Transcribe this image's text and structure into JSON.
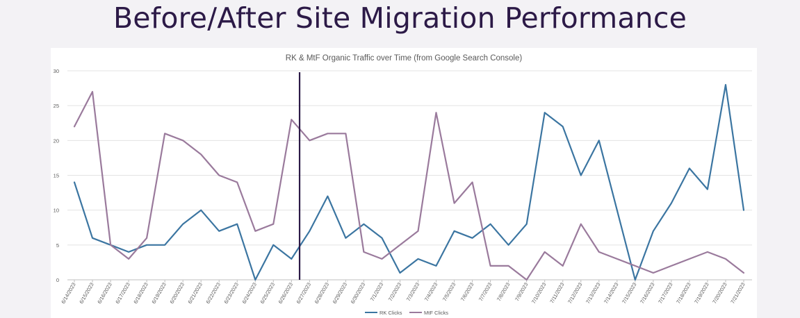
{
  "header": {
    "title": "Before/After Site Migration Performance"
  },
  "colors": {
    "rk": "#3b75a1",
    "mtf": "#9a7a9c",
    "marker": "#2c1a47",
    "title": "#2c1a47"
  },
  "chart_data": {
    "type": "line",
    "title": "RK & MtF Organic Traffic over Time (from Google Search Console)",
    "xlabel": "",
    "ylabel": "",
    "ylim": [
      0,
      30
    ],
    "yticks": [
      0,
      5,
      10,
      15,
      20,
      25,
      30
    ],
    "grid": true,
    "legend_position": "bottom",
    "x": [
      "6/14/2023",
      "6/15/2023",
      "6/16/2023",
      "6/17/2023",
      "6/18/2023",
      "6/19/2023",
      "6/20/2023",
      "6/21/2023",
      "6/22/2023",
      "6/23/2023",
      "6/24/2023",
      "6/25/2023",
      "6/26/2023",
      "6/27/2023",
      "6/28/2023",
      "6/29/2023",
      "6/30/2023",
      "7/1/2023",
      "7/2/2023",
      "7/3/2023",
      "7/4/2023",
      "7/5/2023",
      "7/6/2023",
      "7/7/2023",
      "7/8/2023",
      "7/9/2023",
      "7/10/2023",
      "7/11/2023",
      "7/12/2023",
      "7/13/2023",
      "7/14/2023",
      "7/15/2023",
      "7/16/2023",
      "7/17/2023",
      "7/18/2023",
      "7/19/2023",
      "7/20/2023",
      "7/21/2023"
    ],
    "series": [
      {
        "name": "RK Clicks",
        "color": "#3b75a1",
        "values": [
          14,
          6,
          5,
          4,
          5,
          5,
          8,
          10,
          7,
          8,
          0,
          5,
          3,
          7,
          12,
          6,
          8,
          6,
          1,
          3,
          2,
          7,
          6,
          8,
          5,
          8,
          24,
          22,
          15,
          20,
          10,
          0,
          7,
          11,
          16,
          13,
          28,
          10
        ]
      },
      {
        "name": "MtF Clicks",
        "color": "#9a7a9c",
        "values": [
          22,
          27,
          5,
          3,
          6,
          21,
          20,
          18,
          15,
          14,
          7,
          8,
          23,
          20,
          21,
          21,
          4,
          3,
          5,
          7,
          24,
          11,
          14,
          2,
          2,
          0,
          4,
          2,
          8,
          4,
          3,
          2,
          1,
          2,
          3,
          4,
          3,
          1
        ]
      }
    ],
    "annotations": [
      {
        "type": "vertical-line",
        "between": [
          "6/26/2023",
          "6/27/2023"
        ]
      }
    ]
  }
}
